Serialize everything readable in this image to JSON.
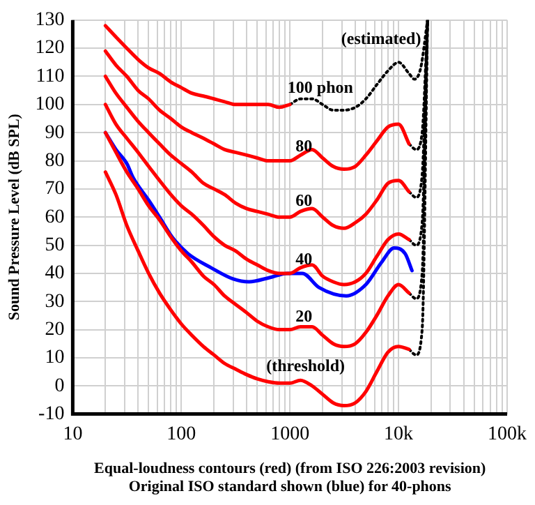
{
  "chart_data": {
    "type": "line",
    "xlabel": "Equal-loudness contours (red) (from ISO 226:2003 revision)\nOriginal ISO standard shown (blue) for 40-phons",
    "ylabel": "Sound Pressure Level (dB SPL)",
    "log": "x",
    "grid": true,
    "legend": false,
    "marker": "none",
    "line_style": "solid",
    "xlim": [
      10,
      100000
    ],
    "xticks": [
      10,
      {
        "value": 20,
        "label": null
      },
      {
        "value": 30,
        "label": null
      },
      {
        "value": 40,
        "label": null
      },
      {
        "value": 50,
        "label": null
      },
      {
        "value": 60,
        "label": null
      },
      {
        "value": 70,
        "label": null
      },
      {
        "value": 80,
        "label": null
      },
      {
        "value": 90,
        "label": null
      },
      100,
      {
        "value": 200,
        "label": null
      },
      {
        "value": 300,
        "label": null
      },
      {
        "value": 400,
        "label": null
      },
      {
        "value": 500,
        "label": null
      },
      {
        "value": 600,
        "label": null
      },
      {
        "value": 700,
        "label": null
      },
      {
        "value": 800,
        "label": null
      },
      {
        "value": 900,
        "label": null
      },
      1000,
      {
        "value": 2000,
        "label": null
      },
      {
        "value": 3000,
        "label": null
      },
      {
        "value": 4000,
        "label": null
      },
      {
        "value": 5000,
        "label": null
      },
      {
        "value": 6000,
        "label": null
      },
      {
        "value": 7000,
        "label": null
      },
      {
        "value": 8000,
        "label": null
      },
      {
        "value": 9000,
        "label": null
      },
      {
        "value": 10000,
        "label": "10k"
      },
      {
        "value": 20000,
        "label": null
      },
      {
        "value": 30000,
        "label": null
      },
      {
        "value": 40000,
        "label": null
      },
      {
        "value": 50000,
        "label": null
      },
      {
        "value": 60000,
        "label": null
      },
      {
        "value": 70000,
        "label": null
      },
      {
        "value": 80000,
        "label": null
      },
      {
        "value": 90000,
        "label": null
      },
      {
        "value": 100000,
        "label": "100k"
      }
    ],
    "ylim": [
      -10,
      130
    ],
    "yticks": [
      -10,
      0,
      10,
      20,
      30,
      40,
      50,
      60,
      70,
      80,
      90,
      100,
      110,
      120,
      130
    ],
    "series": [
      {
        "color": "#ff0000",
        "x": [
          20,
          25,
          31.5,
          40,
          50,
          63,
          80,
          100,
          125,
          160,
          200,
          250,
          315,
          400,
          500,
          630,
          800,
          1000,
          1250,
          1600,
          2000,
          2500,
          3150,
          4000,
          5000,
          6300,
          8000,
          10000,
          12500
        ],
        "values": [
          76,
          68,
          57,
          48,
          40,
          33,
          27,
          22,
          18,
          14,
          11,
          8,
          6,
          4,
          2.5,
          1.5,
          1,
          1,
          2,
          0,
          -3,
          -6,
          -7,
          -6,
          -2,
          5,
          12,
          14,
          13
        ]
      },
      {
        "color": "#ff0000",
        "x": [
          20,
          25,
          31.5,
          40,
          50,
          63,
          80,
          100,
          125,
          160,
          200,
          250,
          315,
          400,
          500,
          630,
          800,
          1000,
          1250,
          1600,
          2000,
          2500,
          3150,
          4000,
          5000,
          6300,
          8000,
          10000,
          12500
        ],
        "values": [
          90,
          83,
          76,
          70,
          64,
          59,
          53,
          48,
          44,
          39,
          36,
          32,
          29,
          26,
          23,
          21,
          20,
          20,
          21,
          21,
          18,
          15,
          14,
          15,
          19,
          25,
          32,
          36,
          33
        ]
      },
      {
        "color": "#ff0000",
        "x": [
          20,
          25,
          31.5,
          40,
          50,
          63,
          80,
          100,
          125,
          160,
          200,
          250,
          315,
          400,
          500,
          630,
          800,
          1000,
          1250,
          1600,
          2000,
          2500,
          3150,
          4000,
          5000,
          6300,
          8000,
          10000,
          12500
        ],
        "values": [
          100,
          93,
          88,
          83,
          78,
          73,
          68,
          64,
          61,
          57,
          53,
          50,
          48,
          45,
          43,
          41,
          40,
          40,
          42,
          43,
          39,
          37,
          36,
          37,
          40,
          46,
          52,
          54,
          52
        ]
      },
      {
        "color": "#ff0000",
        "x": [
          20,
          25,
          31.5,
          40,
          50,
          63,
          80,
          100,
          125,
          160,
          200,
          250,
          315,
          400,
          500,
          630,
          800,
          1000,
          1250,
          1600,
          2000,
          2500,
          3150,
          4000,
          5000,
          6300,
          8000,
          10000,
          12500
        ],
        "values": [
          110,
          104,
          99,
          94,
          90,
          86,
          82,
          79,
          76,
          72,
          70,
          68,
          65,
          63,
          62,
          61,
          60,
          60,
          62,
          63,
          60,
          57,
          56,
          58,
          61,
          66,
          72,
          73,
          69
        ]
      },
      {
        "color": "#ff0000",
        "x": [
          20,
          25,
          31.5,
          40,
          50,
          63,
          80,
          100,
          125,
          160,
          200,
          250,
          315,
          400,
          500,
          630,
          800,
          1000,
          1250,
          1600,
          2000,
          2500,
          3150,
          4000,
          5000,
          6300,
          8000,
          10000,
          12500
        ],
        "values": [
          119,
          114,
          110,
          105,
          102,
          98,
          95,
          92,
          90,
          88,
          86,
          84,
          83,
          82,
          81,
          80,
          80,
          80,
          82,
          84,
          81,
          78,
          77,
          78,
          82,
          87,
          92,
          93,
          86
        ]
      },
      {
        "color": "#ff0000",
        "x": [
          20,
          25,
          31.5,
          40,
          50,
          63,
          80,
          100,
          125,
          160,
          200,
          250,
          315,
          400,
          500,
          630,
          800,
          1000
        ],
        "values": [
          128,
          124,
          120,
          116,
          113,
          111,
          108,
          106,
          104,
          103,
          102,
          101,
          100,
          100,
          100,
          100,
          99,
          100
        ]
      },
      {
        "color": "#0000ff",
        "x": [
          20,
          25,
          31.5,
          36,
          50,
          63,
          82,
          115,
          188,
          300,
          420,
          650,
          950,
          1300,
          1850,
          3300,
          5000,
          7000,
          9100,
          11500,
          13300
        ],
        "values": [
          90,
          84,
          79,
          74,
          66,
          60,
          53,
          47,
          42,
          38,
          37,
          38.5,
          40,
          40,
          35,
          32,
          36,
          44,
          49,
          47,
          41
        ]
      },
      {
        "color": "#000000",
        "line_style": "dotted",
        "x": [
          1000,
          1250,
          1600,
          2000,
          2500,
          3150,
          4000,
          5000,
          6300,
          8000,
          10000,
          12500,
          14000,
          16000,
          18500
        ],
        "values": [
          100,
          102,
          102,
          100,
          98,
          98,
          99,
          102,
          107,
          112,
          115,
          111,
          109,
          113,
          130
        ]
      },
      {
        "color": "#000000",
        "line_style": "dotted",
        "x": [
          12500,
          14500,
          16500,
          18500
        ],
        "values": [
          86,
          84,
          90,
          130
        ]
      },
      {
        "color": "#000000",
        "line_style": "dotted",
        "x": [
          12500,
          14500,
          16500,
          18500
        ],
        "values": [
          69,
          67,
          75,
          130
        ]
      },
      {
        "color": "#000000",
        "line_style": "dotted",
        "x": [
          12500,
          14500,
          16500,
          18500
        ],
        "values": [
          52,
          50,
          58,
          130
        ]
      },
      {
        "color": "#000000",
        "line_style": "dotted",
        "x": [
          12500,
          14500,
          16500,
          18500
        ],
        "values": [
          33,
          31,
          40,
          130
        ]
      },
      {
        "color": "#000000",
        "line_style": "dotted",
        "x": [
          12500,
          14500,
          16500,
          18500
        ],
        "values": [
          13,
          11,
          20,
          130
        ]
      }
    ],
    "annotations": [
      "(estimated)",
      "100 phon",
      "80",
      "60",
      "40",
      "20",
      "(threshold)"
    ]
  }
}
